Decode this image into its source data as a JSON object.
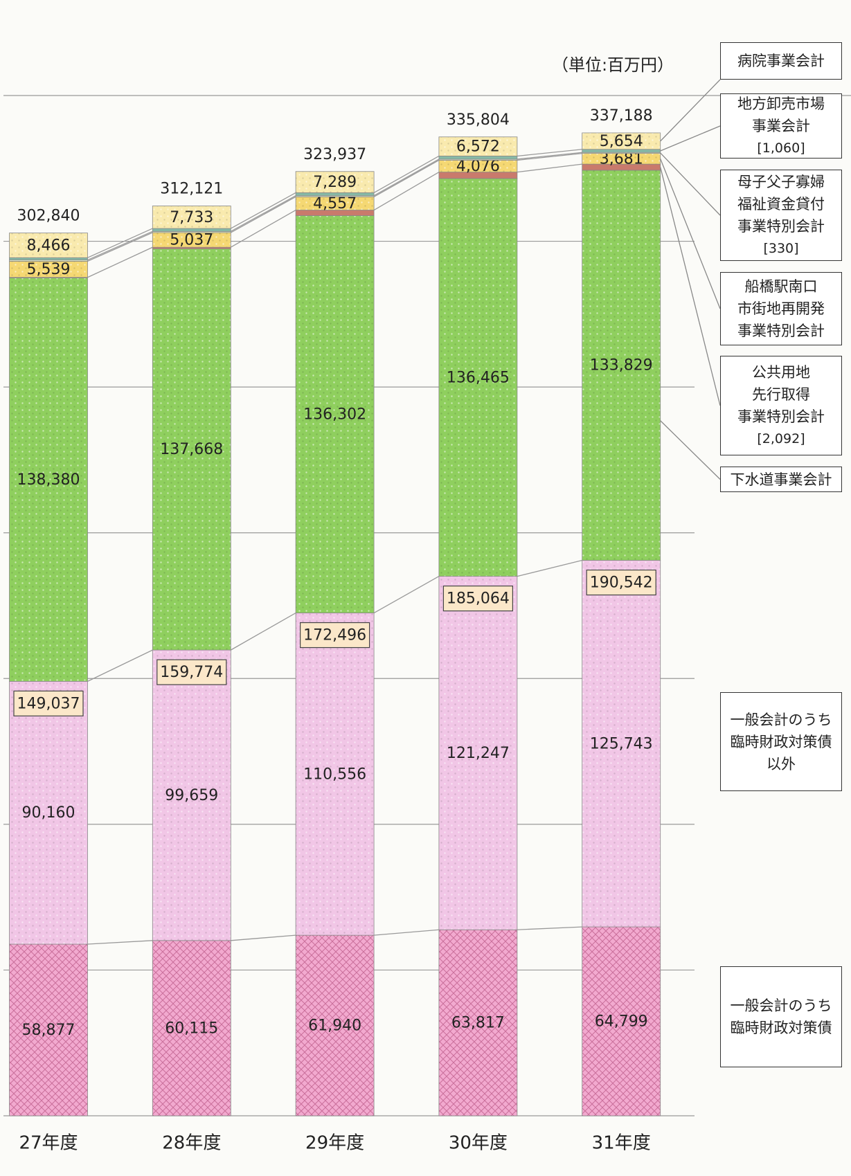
{
  "chart_data": {
    "type": "stacked_bar",
    "unit": "（単位:百万円）",
    "categories": [
      "27年度",
      "28年度",
      "29年度",
      "30年度",
      "31年度"
    ],
    "ylim": [
      0,
      350000
    ],
    "yticks": [
      0,
      50000,
      100000,
      150000,
      200000,
      250000,
      300000,
      350000
    ],
    "grid": true,
    "series": [
      {
        "name": "一般会計のうち\n臨時財政対策債",
        "color": "#f2a9cf",
        "pattern": "crosshatch",
        "values": [
          58877,
          60115,
          61940,
          63817,
          64799
        ],
        "value_labels": [
          "58,877",
          "60,115",
          "61,940",
          "63,817",
          "64,799"
        ]
      },
      {
        "name": "一般会計のうち\n臨時財政対策債\n以外",
        "color": "#f1c6e6",
        "pattern": "dots",
        "values": [
          90160,
          99659,
          110556,
          121247,
          125743
        ],
        "value_labels": [
          "90,160",
          "99,659",
          "110,556",
          "121,247",
          "125,743"
        ]
      },
      {
        "name": "下水道事業会計",
        "color": "#8fcf5e",
        "pattern": "dots",
        "values": [
          138380,
          137668,
          136302,
          136465,
          133829
        ],
        "value_labels": [
          "138,380",
          "137,668",
          "136,302",
          "136,465",
          "133,829"
        ]
      },
      {
        "name": "公共用地\n先行取得\n事業特別会計",
        "note": "[2,092]",
        "color": "#c97a6c",
        "pattern": null,
        "values": [
          200,
          500,
          1900,
          2200,
          2092
        ],
        "value_labels": [
          null,
          null,
          null,
          null,
          null
        ]
      },
      {
        "name": "船橋駅南口\n市街地再開発\n事業特別会計",
        "color": "#f5d873",
        "pattern": "dots",
        "values": [
          5539,
          5037,
          4557,
          4076,
          3681
        ],
        "value_labels": [
          "5,539",
          "5,037",
          "4,557",
          "4,076",
          "3,681"
        ]
      },
      {
        "name": "母子父子寡婦\n福祉資金貸付\n事業特別会計",
        "note": "[330]",
        "color": "#e6efcf",
        "pattern": null,
        "values": [
          420,
          400,
          380,
          360,
          330
        ],
        "value_labels": [
          null,
          null,
          null,
          null,
          null
        ]
      },
      {
        "name": "地方卸売市場\n事業会計",
        "note": "[1,060]",
        "color": "#86b9a6",
        "pattern": null,
        "values": [
          798,
          1009,
          1013,
          1067,
          1060
        ],
        "value_labels": [
          null,
          null,
          null,
          null,
          null
        ]
      },
      {
        "name": "病院事業会計",
        "color": "#f9eaae",
        "pattern": "dots",
        "values": [
          8466,
          7733,
          7289,
          6572,
          5654
        ],
        "value_labels": [
          "8,466",
          "7,733",
          "7,289",
          "6,572",
          "5,654"
        ]
      }
    ],
    "subtotals": {
      "values": [
        149037,
        159774,
        172496,
        185064,
        190542
      ],
      "value_labels": [
        "149,037",
        "159,774",
        "172,496",
        "185,064",
        "190,542"
      ]
    },
    "totals": {
      "values": [
        302840,
        312121,
        323937,
        335804,
        337188
      ],
      "value_labels": [
        "302,840",
        "312,121",
        "323,937",
        "335,804",
        "337,188"
      ]
    }
  }
}
